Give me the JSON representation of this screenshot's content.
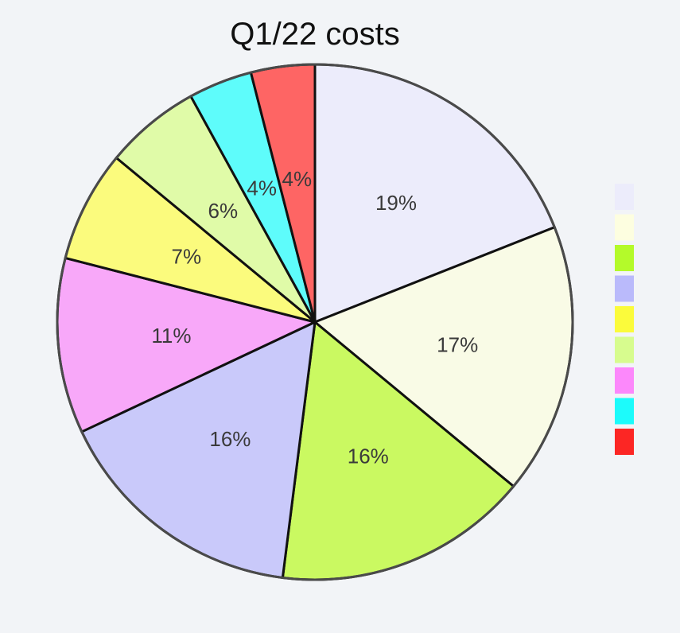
{
  "chart_data": {
    "type": "pie",
    "title": "Q1/22 costs",
    "slices": [
      {
        "value": 19,
        "label": "19%",
        "color": "#ececfb"
      },
      {
        "value": 17,
        "label": "17%",
        "color": "#f9fbe6"
      },
      {
        "value": 16,
        "label": "16%",
        "color": "#caf961"
      },
      {
        "value": 16,
        "label": "16%",
        "color": "#c9c9fa"
      },
      {
        "value": 11,
        "label": "11%",
        "color": "#f8a8f9"
      },
      {
        "value": 7,
        "label": "7%",
        "color": "#fbfb7d"
      },
      {
        "value": 6,
        "label": "6%",
        "color": "#e0fba8"
      },
      {
        "value": 4,
        "label": "4%",
        "color": "#5efcfb"
      },
      {
        "value": 4,
        "label": "4%",
        "color": "#fe6564"
      }
    ],
    "legend": {
      "placement": "right",
      "swatches": [
        "#ececfb",
        "#fdfee0",
        "#b4fa2a",
        "#babafb",
        "#fbfb3b",
        "#d7fc8e",
        "#fc88fb",
        "#1cfbfb",
        "#fc2624"
      ]
    }
  }
}
